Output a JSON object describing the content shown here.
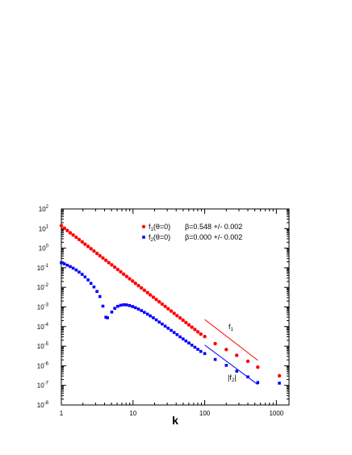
{
  "chart_data": {
    "type": "scatter",
    "xlabel": "k",
    "ylabel": "",
    "xscale": "log",
    "yscale": "log",
    "xlim": [
      1,
      1500
    ],
    "ylim": [
      1e-08,
      100
    ],
    "x_ticks": [
      {
        "value": 1,
        "label": "1"
      },
      {
        "value": 10,
        "label": "10"
      },
      {
        "value": 100,
        "label": "100"
      },
      {
        "value": 1000,
        "label": "1000"
      }
    ],
    "y_ticks": [
      {
        "exp": 2
      },
      {
        "exp": 1
      },
      {
        "exp": 0
      },
      {
        "exp": -1
      },
      {
        "exp": -2
      },
      {
        "exp": -3
      },
      {
        "exp": -4
      },
      {
        "exp": -5
      },
      {
        "exp": -6
      },
      {
        "exp": -7
      },
      {
        "exp": -8
      }
    ],
    "y_tick_base": "10",
    "grid": false,
    "legend_position": "top-right",
    "series": [
      {
        "name_main": "f",
        "name_sub": "1",
        "name_rest": "(θ=0)",
        "beta_text": "β=0.548 +/- 0.002",
        "color": "#ff0000",
        "marker": "circle",
        "label_main": "f",
        "label_sub": "1",
        "fit_line": {
          "x": [
            100,
            550
          ],
          "y": [
            0.00023,
            1.9e-06
          ]
        },
        "points": [
          [
            1.0,
            14
          ],
          [
            1.1,
            10.5
          ],
          [
            1.21,
            8.0
          ],
          [
            1.33,
            6.1
          ],
          [
            1.46,
            4.7
          ],
          [
            1.61,
            3.6
          ],
          [
            1.77,
            2.75
          ],
          [
            1.95,
            2.1
          ],
          [
            2.14,
            1.6
          ],
          [
            2.36,
            1.22
          ],
          [
            2.59,
            0.93
          ],
          [
            2.85,
            0.71
          ],
          [
            3.14,
            0.54
          ],
          [
            3.45,
            0.41
          ],
          [
            3.8,
            0.315
          ],
          [
            4.18,
            0.24
          ],
          [
            4.59,
            0.183
          ],
          [
            5.05,
            0.14
          ],
          [
            5.56,
            0.107
          ],
          [
            6.12,
            0.081
          ],
          [
            6.73,
            0.062
          ],
          [
            7.4,
            0.047
          ],
          [
            8.14,
            0.036
          ],
          [
            8.95,
            0.0275
          ],
          [
            9.85,
            0.021
          ],
          [
            10.8,
            0.016
          ],
          [
            11.9,
            0.0122
          ],
          [
            13.1,
            0.0093
          ],
          [
            14.4,
            0.0071
          ],
          [
            15.9,
            0.0054
          ],
          [
            17.4,
            0.0041
          ],
          [
            19.2,
            0.00315
          ],
          [
            21.1,
            0.0024
          ],
          [
            23.2,
            0.00183
          ],
          [
            25.5,
            0.0014
          ],
          [
            28.1,
            0.00107
          ],
          [
            30.9,
            0.00081
          ],
          [
            34.0,
            0.00062
          ],
          [
            37.4,
            0.00047
          ],
          [
            41.1,
            0.00036
          ],
          [
            45.3,
            0.000275
          ],
          [
            49.8,
            0.00021
          ],
          [
            54.7,
            0.00016
          ],
          [
            60.2,
            0.000122
          ],
          [
            66.2,
            9.3e-05
          ],
          [
            72.9,
            7.1e-05
          ],
          [
            80.2,
            5.4e-05
          ],
          [
            88.2,
            4.1e-05
          ],
          [
            100,
            3.1e-05
          ],
          [
            140,
            1.35e-05
          ],
          [
            200,
            6.7e-06
          ],
          [
            280,
            3.4e-06
          ],
          [
            400,
            1.7e-06
          ],
          [
            550,
            8.5e-07
          ],
          [
            1100,
            3.1e-07
          ]
        ]
      },
      {
        "name_main": "f",
        "name_sub": "2",
        "name_rest": "(θ=0)",
        "beta_text": "β=0.000 +/- 0.002",
        "color": "#0000ff",
        "marker": "square",
        "label_main": "|f",
        "label_sub": "2",
        "label_rest": "|",
        "fit_line": {
          "x": [
            100,
            550
          ],
          "y": [
            1.15e-05,
            1.1e-07
          ]
        },
        "points": [
          [
            1.0,
            0.18
          ],
          [
            1.1,
            0.16
          ],
          [
            1.21,
            0.135
          ],
          [
            1.33,
            0.115
          ],
          [
            1.46,
            0.095
          ],
          [
            1.61,
            0.077
          ],
          [
            1.77,
            0.06
          ],
          [
            1.95,
            0.046
          ],
          [
            2.14,
            0.034
          ],
          [
            2.36,
            0.024
          ],
          [
            2.59,
            0.016
          ],
          [
            2.85,
            0.0105
          ],
          [
            3.14,
            0.0062
          ],
          [
            3.45,
            0.0034
          ],
          [
            3.8,
            0.0011
          ],
          [
            4.18,
            0.0003
          ],
          [
            4.4,
            0.00028
          ],
          [
            5.05,
            0.00055
          ],
          [
            5.56,
            0.00085
          ],
          [
            6.12,
            0.00108
          ],
          [
            6.73,
            0.00122
          ],
          [
            7.4,
            0.0013
          ],
          [
            8.14,
            0.00128
          ],
          [
            8.95,
            0.00118
          ],
          [
            9.85,
            0.00105
          ],
          [
            10.8,
            0.00092
          ],
          [
            11.9,
            0.00078
          ],
          [
            13.1,
            0.00065
          ],
          [
            14.4,
            0.00053
          ],
          [
            15.9,
            0.00043
          ],
          [
            17.4,
            0.00035
          ],
          [
            19.2,
            0.00028
          ],
          [
            21.1,
            0.00022
          ],
          [
            23.2,
            0.00017
          ],
          [
            25.5,
            0.000135
          ],
          [
            28.1,
            0.000105
          ],
          [
            30.9,
            8.2e-05
          ],
          [
            34.0,
            6.4e-05
          ],
          [
            37.4,
            5e-05
          ],
          [
            41.1,
            3.9e-05
          ],
          [
            45.3,
            3e-05
          ],
          [
            49.8,
            2.35e-05
          ],
          [
            54.7,
            1.85e-05
          ],
          [
            60.2,
            1.45e-05
          ],
          [
            66.2,
            1.13e-05
          ],
          [
            72.9,
            8.8e-06
          ],
          [
            80.2,
            6.9e-06
          ],
          [
            88.2,
            5.4e-06
          ],
          [
            100,
            4.2e-06
          ],
          [
            140,
            2.1e-06
          ],
          [
            200,
            1.05e-06
          ],
          [
            280,
            5.3e-07
          ],
          [
            400,
            2.7e-07
          ],
          [
            550,
            1.4e-07
          ],
          [
            1100,
            1.3e-07
          ]
        ]
      }
    ]
  }
}
